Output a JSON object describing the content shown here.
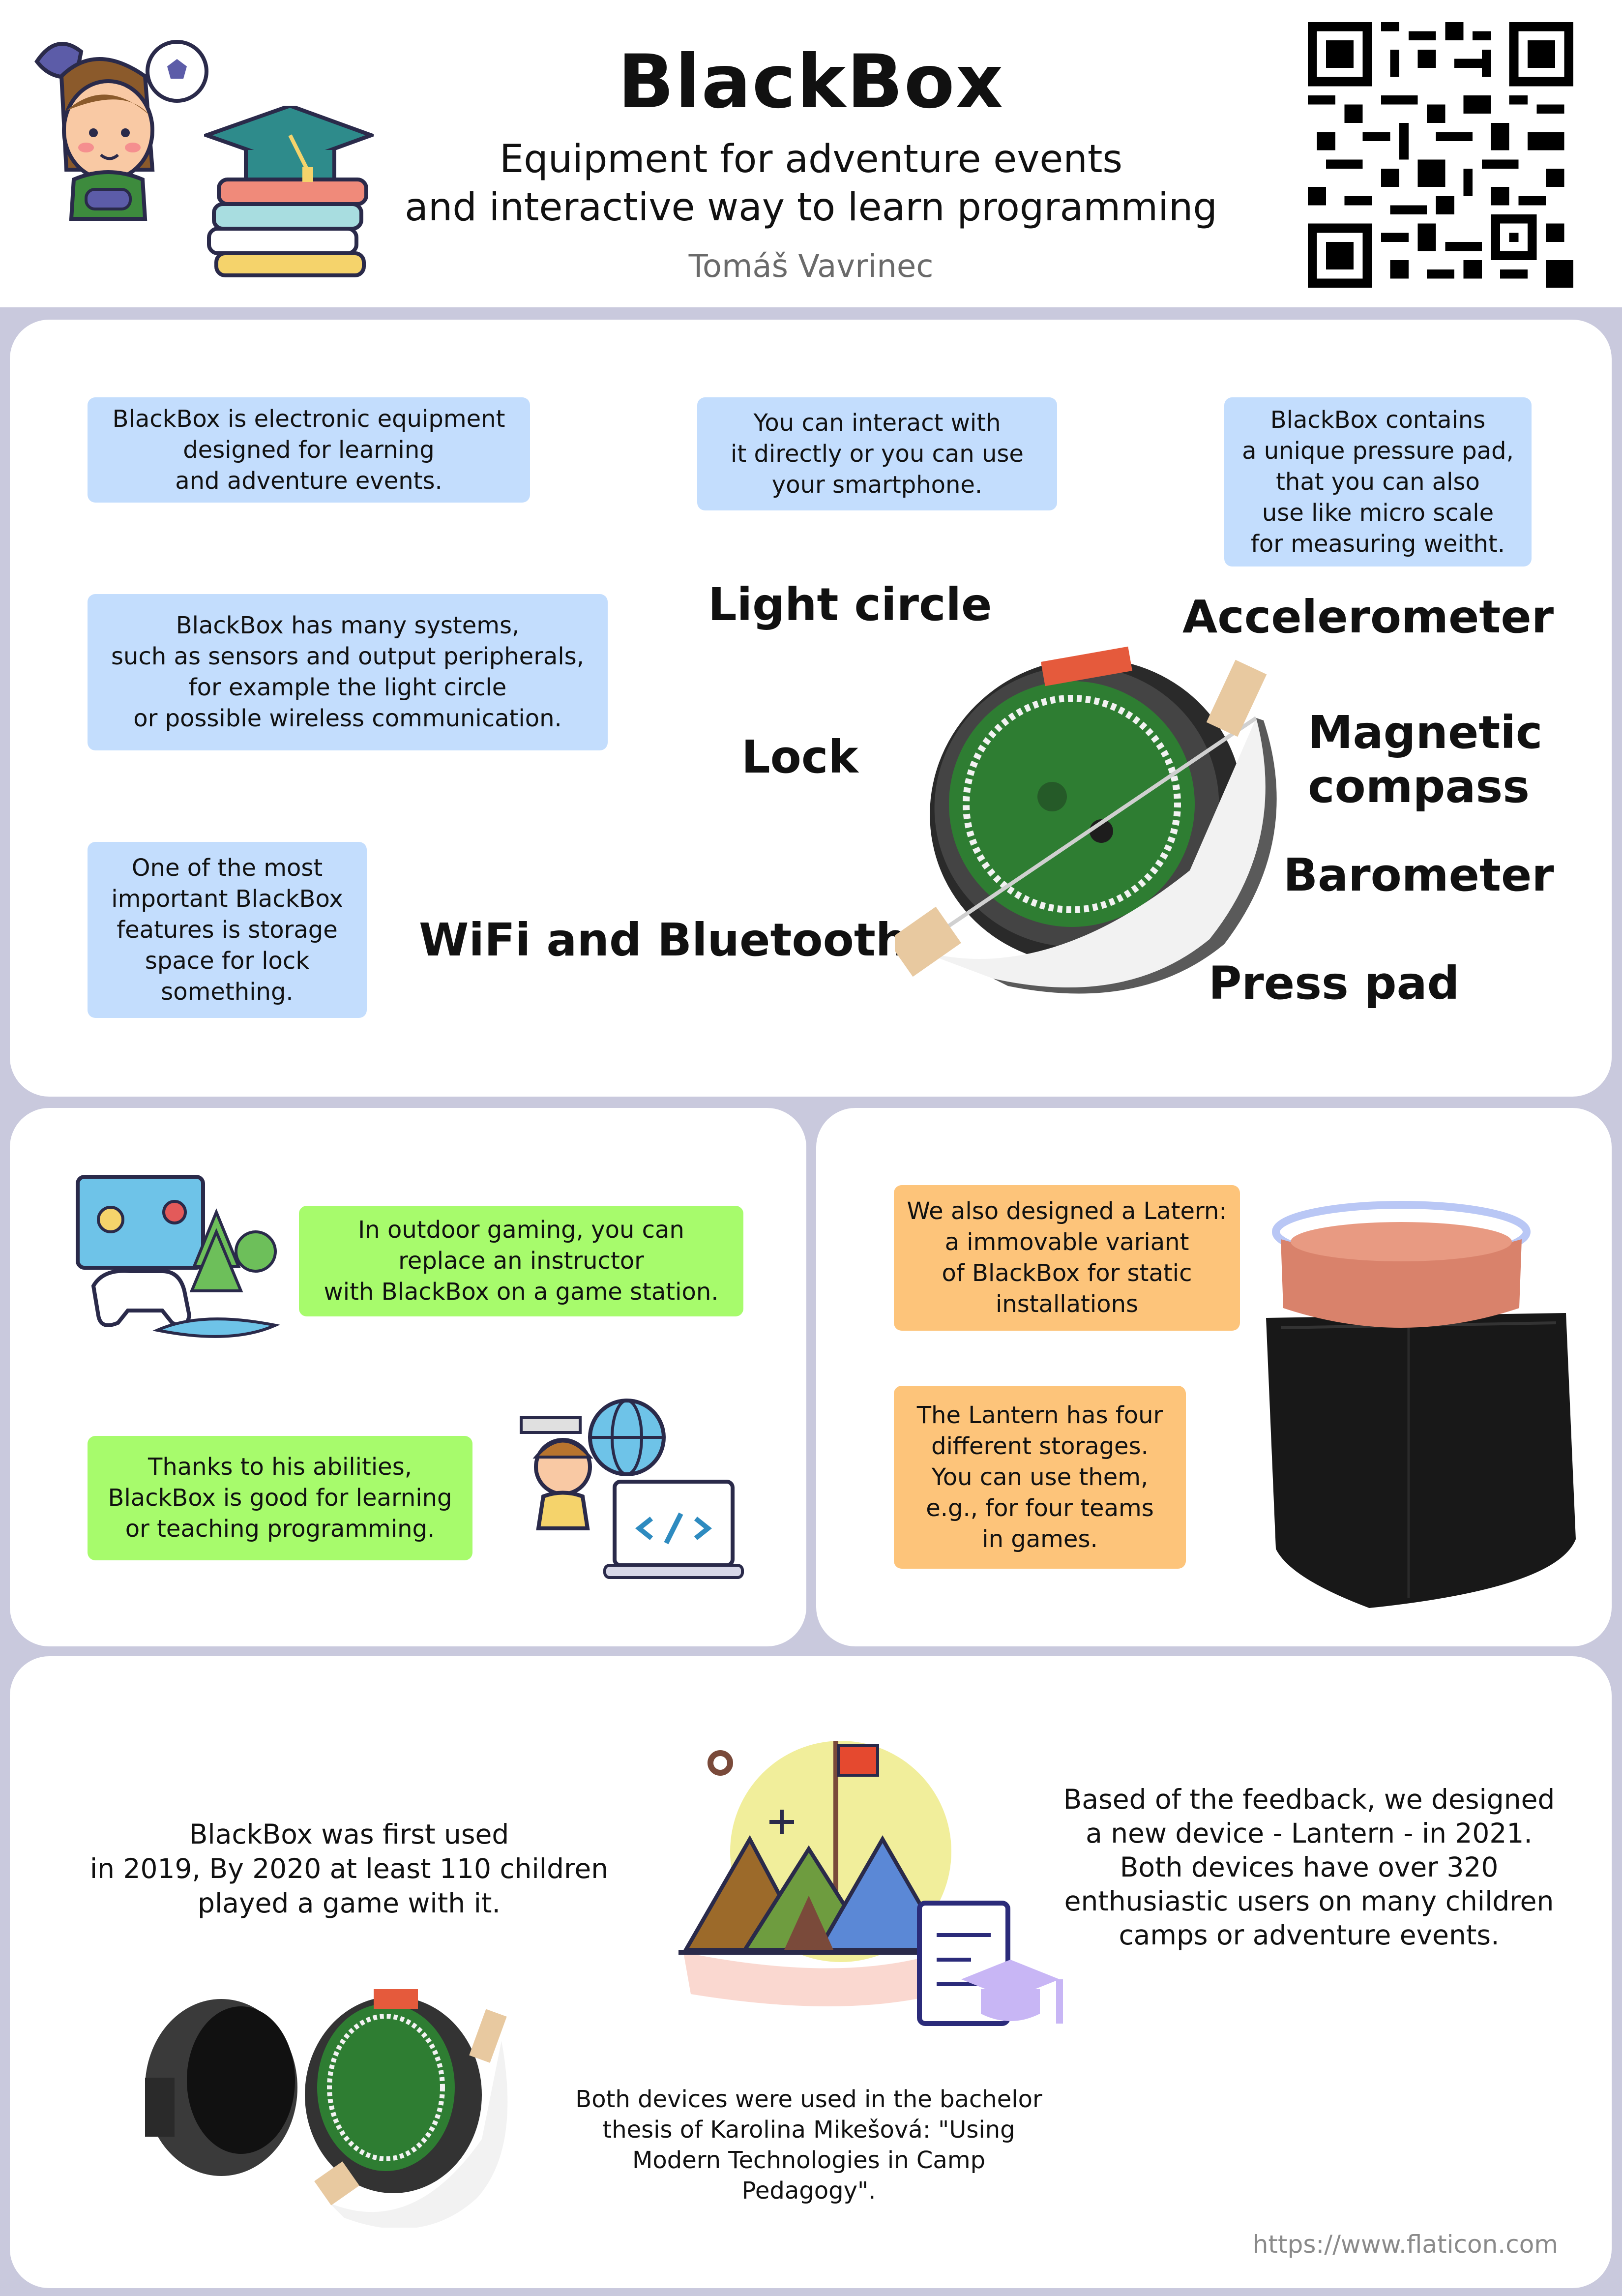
{
  "header": {
    "title": "BlackBox",
    "subtitle_line1": "Equipment for adventure events",
    "subtitle_line2": "and interactive way to learn programming",
    "author": "Tomáš Vavrinec"
  },
  "overview": {
    "notes": [
      "BlackBox is electronic equipment\ndesigned for learning\nand adventure events.",
      "You can interact with\nit directly or you can use\nyour smartphone.",
      "BlackBox contains\na unique pressure pad,\nthat you can also\nuse like micro scale\nfor measuring weitht.",
      "BlackBox has many systems,\nsuch as sensors and output peripherals,\nfor example the light circle\nor possible wireless communication.",
      "One of the most\nimportant BlackBox\nfeatures is storage\nspace for lock\nsomething."
    ],
    "features": {
      "light_circle": "Light circle",
      "accelerometer": "Accelerometer",
      "lock": "Lock",
      "magnetic_compass": "Magnetic\ncompass",
      "barometer": "Barometer",
      "wifi_bluetooth": "WiFi and Bluetooth",
      "press_pad": "Press pad"
    }
  },
  "uses": {
    "gaming": "In outdoor gaming, you can\nreplace an instructor\nwith BlackBox on a game station.",
    "programming": "Thanks to his abilities,\nBlackBox is good for learning\nor teaching programming."
  },
  "lantern": {
    "variant": "We also designed a Latern:\na immovable variant\nof BlackBox for static\ninstallations",
    "storages": "The Lantern has four\ndifferent storages.\nYou can use them,\ne.g., for four teams\nin games."
  },
  "history": {
    "first_used": "BlackBox was first used\nin 2019, By 2020 at least 110 children\nplayed a game with it.",
    "feedback": "Based of the feedback, we designed\na new device - Lantern - in 2021.\n   Both devices have over 320\nenthusiastic users on many children\ncamps or adventure events.",
    "thesis": "Both devices were used in the bachelor\nthesis of Karolina Mikešová: \"Using\nModern Technologies in Camp\nPedagogy\"."
  },
  "footer": {
    "credit": "https://www.flaticon.com"
  },
  "colors": {
    "blue_note": "#c3ddfd",
    "green_note": "#a7fb6c",
    "orange_note": "#fdc47a",
    "frame": "#c9c9dd"
  },
  "icons": [
    "kid-gamer-icon",
    "graduation-books-icon",
    "qr-code-icon",
    "gamepad-nature-icon",
    "programmer-icon",
    "camp-tents-icon"
  ]
}
